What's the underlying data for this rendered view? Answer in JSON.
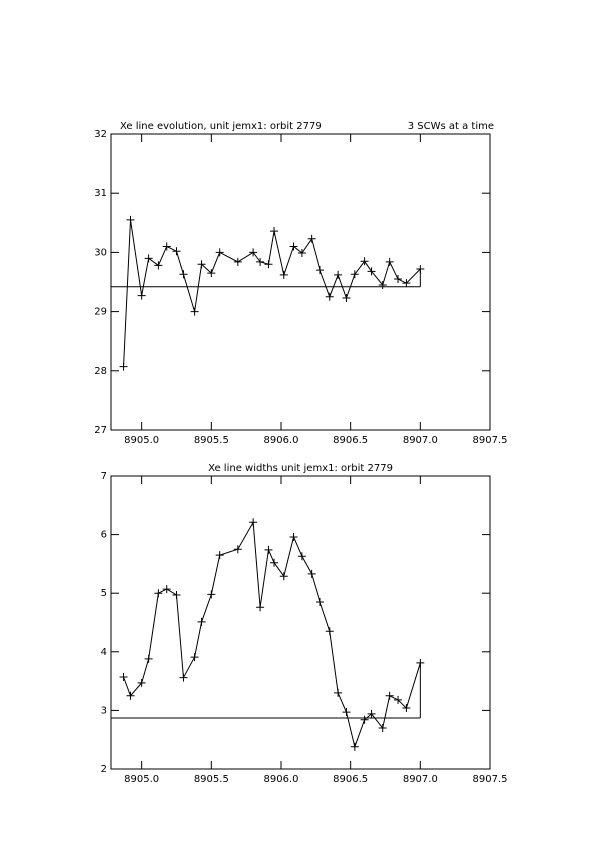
{
  "chart_data": [
    {
      "type": "line",
      "title": "Xe line evolution, unit jemx1: orbit 2779",
      "annotation": "3 SCWs at a time",
      "x": [
        8904.87,
        8904.92,
        8905.0,
        8905.05,
        8905.12,
        8905.18,
        8905.25,
        8905.3,
        8905.38,
        8905.43,
        8905.5,
        8905.56,
        8905.69,
        8905.8,
        8905.85,
        8905.91,
        8905.95,
        8906.02,
        8906.09,
        8906.15,
        8906.22,
        8906.28,
        8906.35,
        8906.41,
        8906.47,
        8906.53,
        8906.6,
        8906.65,
        8906.73,
        8906.78,
        8906.84,
        8906.9,
        8907.0
      ],
      "values": [
        28.07,
        30.55,
        29.27,
        29.9,
        29.78,
        30.1,
        30.02,
        29.63,
        29.0,
        29.8,
        29.65,
        30.0,
        29.84,
        30.0,
        29.84,
        29.8,
        30.36,
        29.62,
        30.1,
        29.99,
        30.23,
        29.7,
        29.25,
        29.62,
        29.23,
        29.63,
        29.85,
        29.68,
        29.45,
        29.84,
        29.55,
        29.48,
        29.72
      ],
      "color": "#000000",
      "hline": 29.42,
      "xlim": [
        8904.78,
        8907.5
      ],
      "xticks": [
        {
          "value": 8905,
          "label": "8905.0"
        },
        {
          "value": 8905.5,
          "label": "8905.5"
        },
        {
          "value": 8906,
          "label": "8906.0"
        },
        {
          "value": 8906.5,
          "label": "8906.5"
        },
        {
          "value": 8907,
          "label": "8907.0"
        },
        {
          "value": 8907.5,
          "label": "8907.5"
        }
      ],
      "ylim": [
        27,
        32
      ],
      "yticks": [
        27,
        28,
        29,
        30,
        31,
        32
      ]
    },
    {
      "type": "line",
      "title": "Xe line widths unit jemx1: orbit 2779",
      "x": [
        8904.87,
        8904.92,
        8905.0,
        8905.05,
        8905.12,
        8905.18,
        8905.25,
        8905.3,
        8905.38,
        8905.43,
        8905.5,
        8905.56,
        8905.69,
        8905.8,
        8905.85,
        8905.91,
        8905.95,
        8906.02,
        8906.09,
        8906.15,
        8906.22,
        8906.28,
        8906.35,
        8906.41,
        8906.47,
        8906.53,
        8906.6,
        8906.65,
        8906.73,
        8906.78,
        8906.84,
        8906.9,
        8907.0
      ],
      "values": [
        3.57,
        3.25,
        3.47,
        3.88,
        5.0,
        5.07,
        4.97,
        3.56,
        3.91,
        4.51,
        4.98,
        5.65,
        5.75,
        6.21,
        4.76,
        5.74,
        5.52,
        5.29,
        5.96,
        5.63,
        5.33,
        4.85,
        4.35,
        3.3,
        2.97,
        2.38,
        2.84,
        2.94,
        2.7,
        3.25,
        3.18,
        3.04,
        3.81
      ],
      "color": "#000000",
      "hline": 2.87,
      "xlim": [
        8904.78,
        8907.5
      ],
      "xticks": [
        {
          "value": 8905,
          "label": "8905.0"
        },
        {
          "value": 8905.5,
          "label": "8905.5"
        },
        {
          "value": 8906,
          "label": "8906.0"
        },
        {
          "value": 8906.5,
          "label": "8906.5"
        },
        {
          "value": 8907,
          "label": "8907.0"
        },
        {
          "value": 8907.5,
          "label": "8907.5"
        }
      ],
      "ylim": [
        2,
        7
      ],
      "yticks": [
        2,
        3,
        4,
        5,
        6,
        7
      ]
    }
  ]
}
